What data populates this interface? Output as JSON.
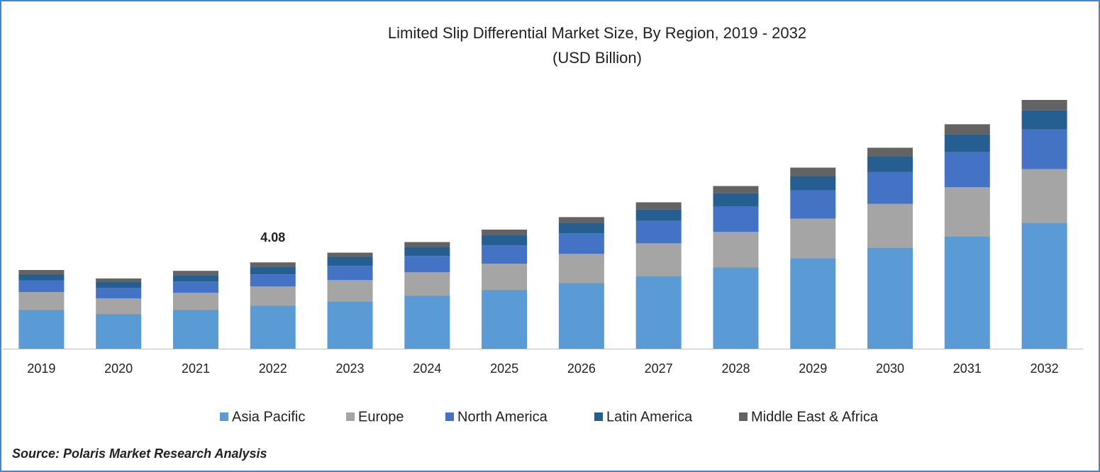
{
  "chart_data": {
    "type": "stacked-bar",
    "title": "Limited Slip Differential Market Size, By Region, 2019 - 2032",
    "subtitle": "(USD Billion)",
    "categories": [
      "2019",
      "2020",
      "2021",
      "2022",
      "2023",
      "2024",
      "2025",
      "2026",
      "2027",
      "2028",
      "2029",
      "2030",
      "2031",
      "2032"
    ],
    "series": [
      {
        "name": "Asia Pacific",
        "color": "#5b9bd5",
        "values": [
          1.84,
          1.64,
          1.84,
          2.04,
          2.24,
          2.51,
          2.78,
          3.11,
          3.44,
          3.85,
          4.28,
          4.78,
          5.32,
          5.95
        ]
      },
      {
        "name": "Europe",
        "color": "#a5a5a5",
        "values": [
          0.84,
          0.74,
          0.8,
          0.9,
          1.0,
          1.1,
          1.24,
          1.37,
          1.54,
          1.67,
          1.87,
          2.07,
          2.31,
          2.54
        ]
      },
      {
        "name": "North America",
        "color": "#4472c4",
        "values": [
          0.54,
          0.5,
          0.54,
          0.57,
          0.67,
          0.77,
          0.87,
          0.97,
          1.07,
          1.2,
          1.34,
          1.51,
          1.67,
          1.87
        ]
      },
      {
        "name": "Latin America",
        "color": "#255e91",
        "values": [
          0.3,
          0.27,
          0.3,
          0.37,
          0.43,
          0.43,
          0.47,
          0.5,
          0.54,
          0.64,
          0.67,
          0.74,
          0.84,
          0.9
        ]
      },
      {
        "name": "Middle East & Africa",
        "color": "#636363",
        "values": [
          0.2,
          0.17,
          0.2,
          0.2,
          0.2,
          0.23,
          0.27,
          0.27,
          0.33,
          0.33,
          0.4,
          0.4,
          0.47,
          0.5
        ]
      }
    ],
    "total_labels": [
      null,
      null,
      null,
      "4.08",
      null,
      null,
      null,
      null,
      null,
      null,
      null,
      null,
      null,
      null
    ],
    "source": "Source: Polaris Market Research Analysis"
  }
}
